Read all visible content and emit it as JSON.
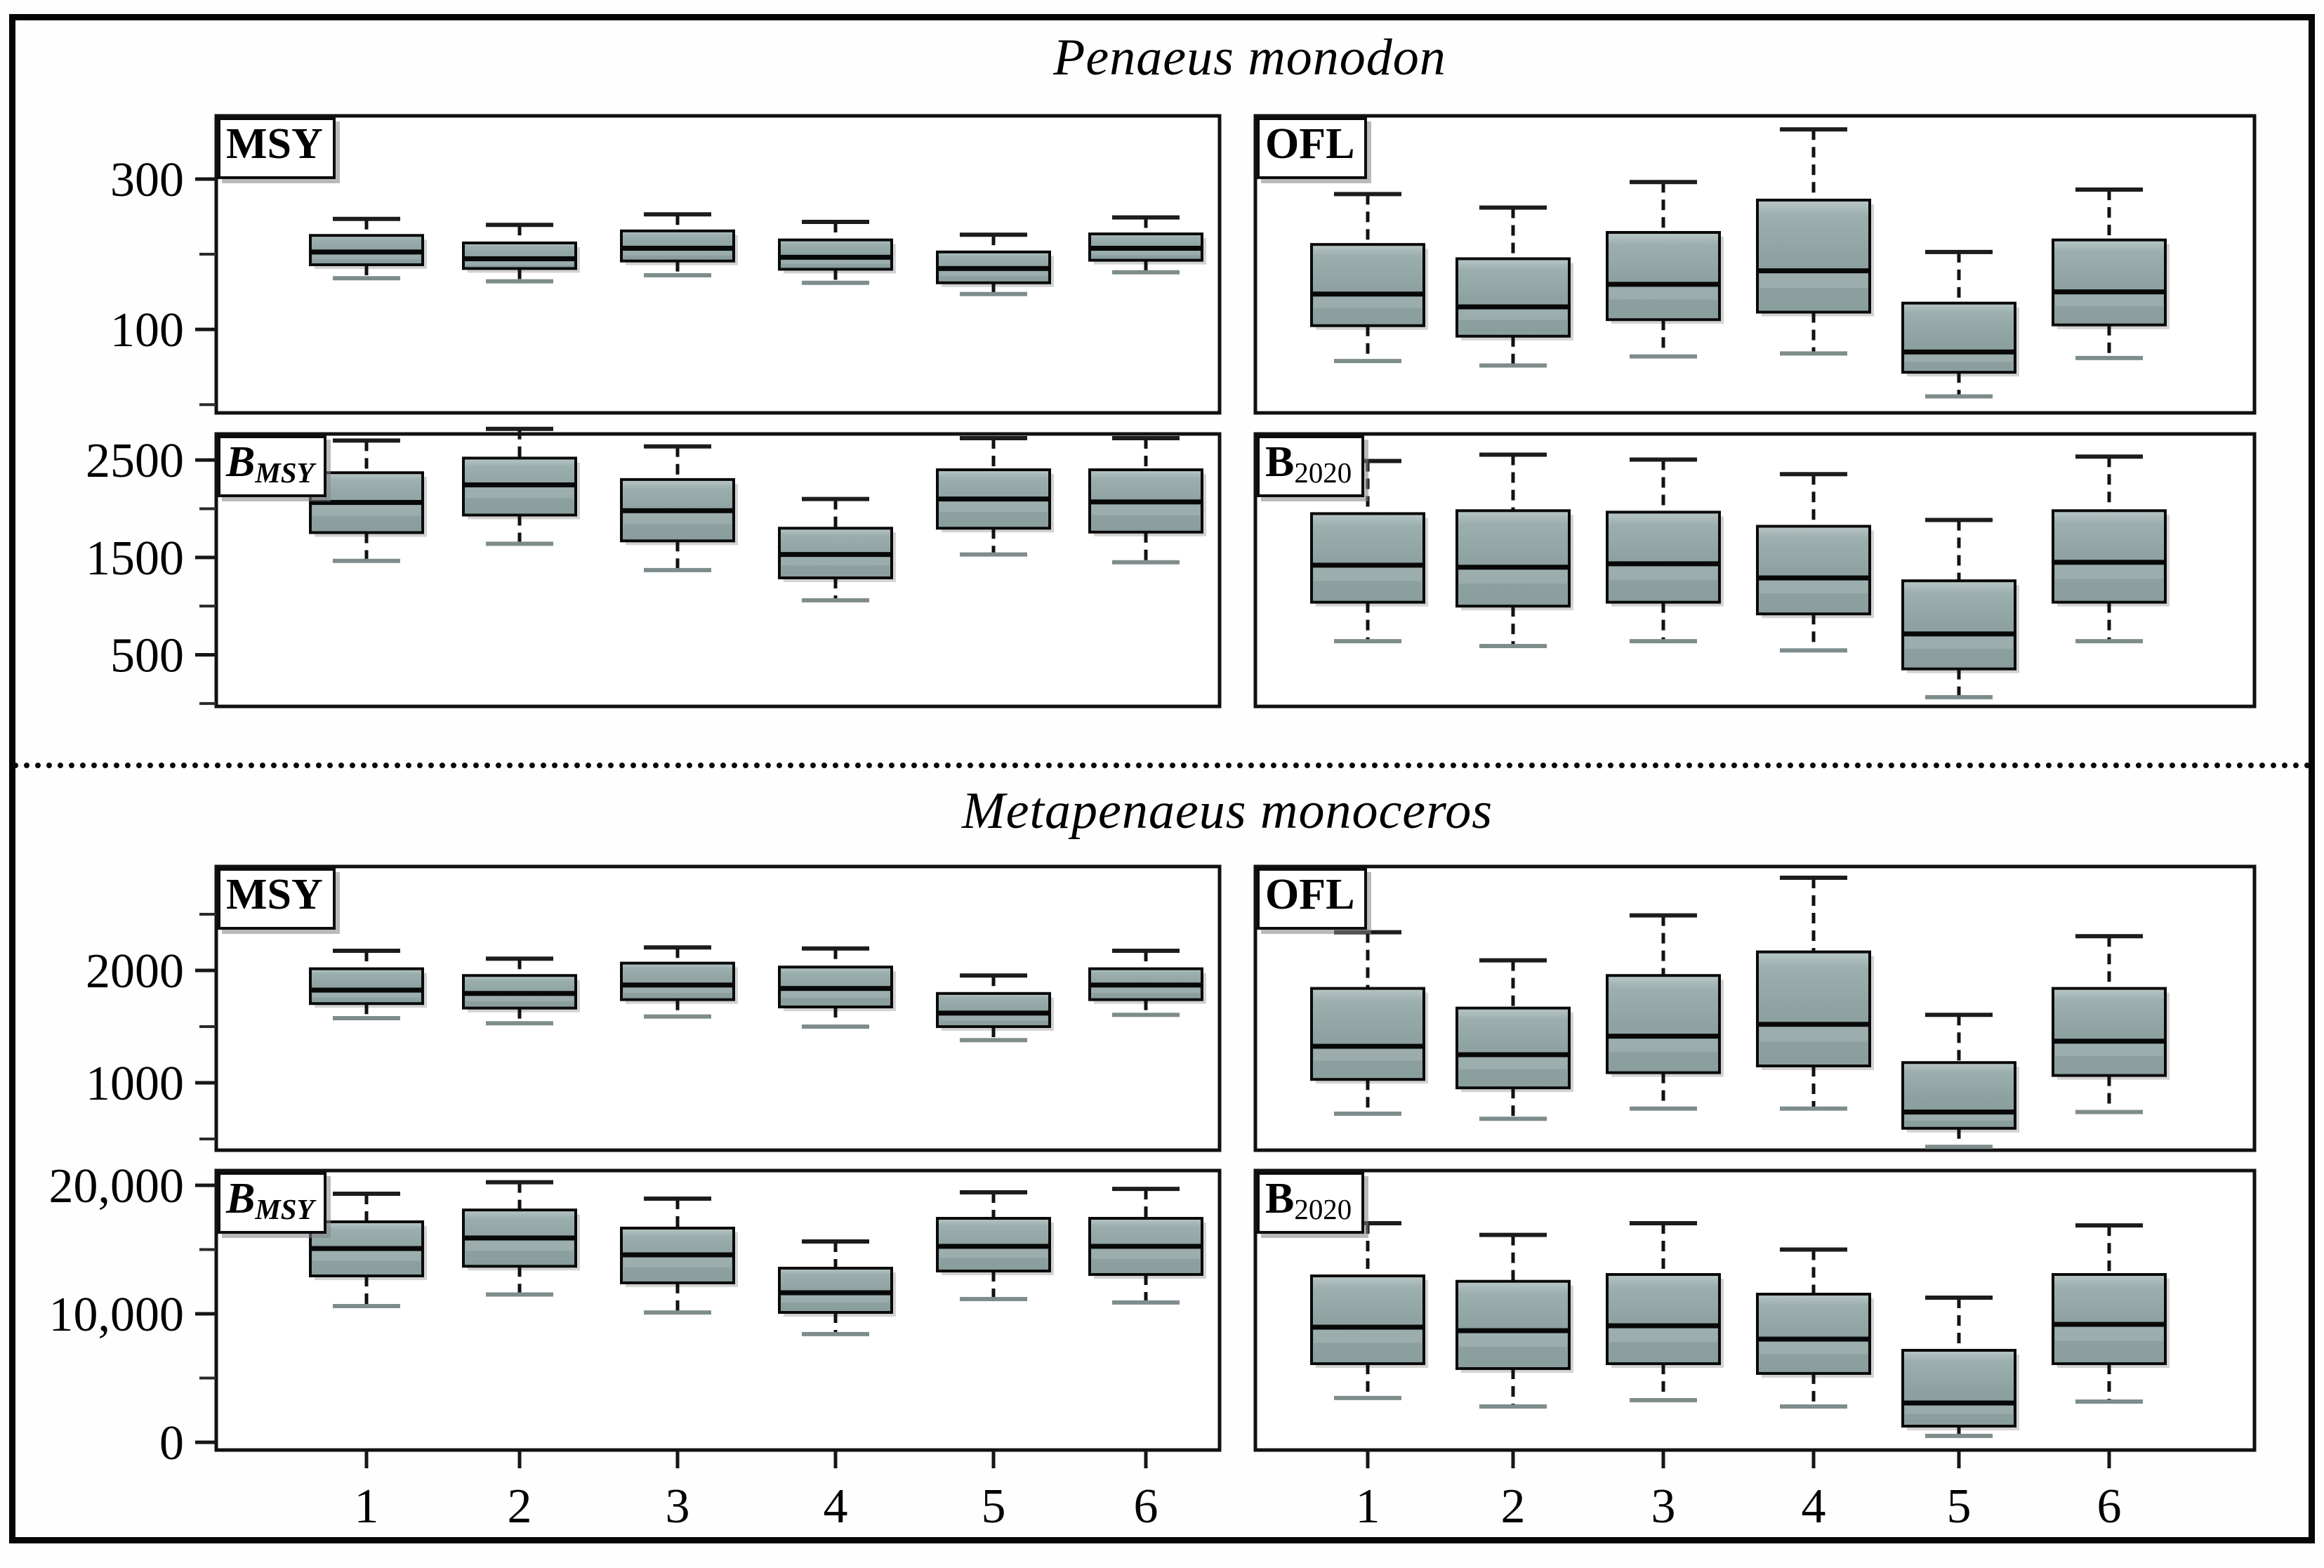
{
  "figure": {
    "groups": [
      {
        "title": "Penaeus monodon"
      },
      {
        "title": "Metapenaeus monoceros"
      }
    ]
  },
  "colors": {
    "box_fill": "#8da1a1",
    "box_fill_light": "#b9c6c6",
    "box_border": "#0a0a0a",
    "median": "#080808",
    "whisker": "#121212",
    "cap_top": "#1c1c1c",
    "cap_bottom": "#7e8c8c",
    "shadow": "#aeaeae",
    "frame": "#060606",
    "panel_border": "#111111"
  },
  "chart_data": {
    "type": "boxplot",
    "x_categories": [
      "1",
      "2",
      "3",
      "4",
      "5",
      "6"
    ],
    "box_stats_order": [
      "whisker_low",
      "q1",
      "median",
      "q3",
      "whisker_high"
    ],
    "legend": "none",
    "grid": false,
    "panels": [
      {
        "id": "pm-msy",
        "group": "Penaeus monodon",
        "label_main": "MSY",
        "label_sub": "",
        "label_italic": false,
        "ylim": [
          -11,
          384
        ],
        "y_ticks_major": [
          {
            "v": 300,
            "label": "300"
          },
          {
            "v": 100,
            "label": "100"
          }
        ],
        "y_ticks_minor": [
          200,
          0
        ],
        "show_x_ticks": false,
        "boxes": [
          [
            168,
            186,
            203,
            225,
            247
          ],
          [
            164,
            181,
            194,
            215,
            239
          ],
          [
            172,
            191,
            208,
            231,
            253
          ],
          [
            162,
            180,
            196,
            219,
            243
          ],
          [
            147,
            162,
            181,
            203,
            226
          ],
          [
            176,
            192,
            208,
            227,
            249
          ]
        ]
      },
      {
        "id": "pm-ofl",
        "group": "Penaeus monodon",
        "label_main": "OFL",
        "label_sub": "",
        "label_italic": false,
        "ylim": [
          -11,
          384
        ],
        "y_ticks_major": [],
        "y_ticks_minor": [],
        "show_x_ticks": false,
        "boxes": [
          [
            58,
            105,
            147,
            213,
            280
          ],
          [
            52,
            91,
            130,
            194,
            262
          ],
          [
            64,
            113,
            160,
            229,
            296
          ],
          [
            68,
            123,
            178,
            272,
            366
          ],
          [
            11,
            43,
            70,
            135,
            203
          ],
          [
            62,
            106,
            150,
            219,
            286
          ]
        ]
      },
      {
        "id": "pm-bmsy",
        "group": "Penaeus monodon",
        "label_main": "B",
        "label_sub": "MSY",
        "label_italic": true,
        "ylim": [
          -30,
          2768
        ],
        "y_ticks_major": [
          {
            "v": 2500,
            "label": "2500"
          },
          {
            "v": 1500,
            "label": "1500"
          },
          {
            "v": 500,
            "label": "500"
          }
        ],
        "y_ticks_minor": [
          2000,
          1000,
          0
        ],
        "show_x_ticks": false,
        "boxes": [
          [
            1465,
            1755,
            2065,
            2370,
            2700
          ],
          [
            1640,
            1935,
            2245,
            2520,
            2820
          ],
          [
            1370,
            1670,
            1980,
            2300,
            2640
          ],
          [
            1060,
            1290,
            1530,
            1800,
            2100
          ],
          [
            1530,
            1800,
            2100,
            2400,
            2725
          ],
          [
            1450,
            1760,
            2070,
            2400,
            2725
          ]
        ]
      },
      {
        "id": "pm-b2020",
        "group": "Penaeus monodon",
        "label_main": "B",
        "label_sub": "2020",
        "label_italic": false,
        "ylim": [
          -30,
          2768
        ],
        "y_ticks_major": [],
        "y_ticks_minor": [],
        "show_x_ticks": false,
        "boxes": [
          [
            640,
            1040,
            1420,
            1950,
            2490
          ],
          [
            590,
            1000,
            1400,
            1980,
            2555
          ],
          [
            640,
            1040,
            1435,
            1965,
            2505
          ],
          [
            545,
            920,
            1290,
            1820,
            2355
          ],
          [
            65,
            355,
            715,
            1260,
            1885
          ],
          [
            640,
            1040,
            1450,
            1980,
            2535
          ]
        ]
      },
      {
        "id": "mm-msy",
        "group": "Metapenaeus monoceros",
        "label_main": "MSY",
        "label_sub": "",
        "label_italic": false,
        "ylim": [
          400,
          2925
        ],
        "y_ticks_major": [
          {
            "v": 2000,
            "label": "2000"
          },
          {
            "v": 1000,
            "label": "1000"
          }
        ],
        "y_ticks_minor": [
          2500,
          1500,
          500
        ],
        "show_x_ticks": false,
        "boxes": [
          [
            1575,
            1705,
            1825,
            2015,
            2175
          ],
          [
            1530,
            1665,
            1795,
            1955,
            2105
          ],
          [
            1590,
            1740,
            1870,
            2065,
            2205
          ],
          [
            1500,
            1675,
            1840,
            2030,
            2195
          ],
          [
            1380,
            1500,
            1620,
            1795,
            1955
          ],
          [
            1605,
            1740,
            1870,
            2015,
            2175
          ]
        ]
      },
      {
        "id": "mm-ofl",
        "group": "Metapenaeus monoceros",
        "label_main": "OFL",
        "label_sub": "",
        "label_italic": false,
        "ylim": [
          400,
          2925
        ],
        "y_ticks_major": [],
        "y_ticks_minor": [],
        "show_x_ticks": false,
        "boxes": [
          [
            725,
            1030,
            1325,
            1840,
            2340
          ],
          [
            680,
            955,
            1250,
            1665,
            2090
          ],
          [
            770,
            1090,
            1415,
            1955,
            2490
          ],
          [
            770,
            1150,
            1520,
            2165,
            2825
          ],
          [
            430,
            595,
            740,
            1180,
            1605
          ],
          [
            740,
            1065,
            1370,
            1840,
            2305
          ]
        ]
      },
      {
        "id": "mm-bmsy",
        "group": "Metapenaeus monoceros",
        "label_main": "B",
        "label_sub": "MSY",
        "label_italic": true,
        "ylim": [
          -600,
          21147
        ],
        "y_ticks_major": [
          {
            "v": 20000,
            "label": "20,000"
          },
          {
            "v": 10000,
            "label": "10,000"
          },
          {
            "v": 0,
            "label": "0"
          }
        ],
        "y_ticks_minor": [
          15000,
          5000
        ],
        "show_x_ticks": true,
        "boxes": [
          [
            10600,
            12950,
            15080,
            17160,
            19345
          ],
          [
            11500,
            13700,
            15900,
            18080,
            20240
          ],
          [
            10100,
            12410,
            14590,
            16670,
            18960
          ],
          [
            8420,
            10110,
            11640,
            13550,
            15630
          ],
          [
            11150,
            13330,
            15250,
            17430,
            19450
          ],
          [
            10880,
            13060,
            15250,
            17430,
            19720
          ]
        ]
      },
      {
        "id": "mm-b2020",
        "group": "Metapenaeus monoceros",
        "label_main": "B",
        "label_sub": "2020",
        "label_italic": false,
        "ylim": [
          -600,
          21147
        ],
        "y_ticks_major": [],
        "y_ticks_minor": [],
        "show_x_ticks": true,
        "boxes": [
          [
            3450,
            6120,
            8960,
            12950,
            17050
          ],
          [
            2790,
            5740,
            8690,
            12530,
            16140
          ],
          [
            3280,
            6120,
            9070,
            13060,
            17050
          ],
          [
            2790,
            5360,
            8030,
            11530,
            15000
          ],
          [
            500,
            1260,
            3060,
            7160,
            11260
          ],
          [
            3170,
            6120,
            9180,
            13060,
            16880
          ]
        ]
      }
    ]
  }
}
